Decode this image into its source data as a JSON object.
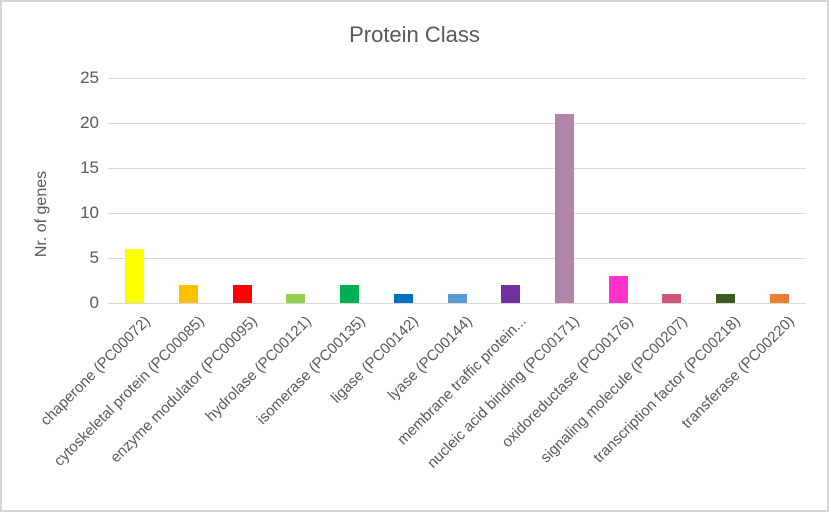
{
  "chart_data": {
    "type": "bar",
    "title": "Protein Class",
    "xlabel": "",
    "ylabel": "Nr. of genes",
    "ylim": [
      0,
      25
    ],
    "yticks": [
      0,
      5,
      10,
      15,
      20,
      25
    ],
    "grid": true,
    "legend": false,
    "categories": [
      "chaperone (PC00072)",
      "cytoskeletal protein (PC00085)",
      "enzyme modulator (PC00095)",
      "hydrolase (PC00121)",
      "isomerase (PC00135)",
      "ligase (PC00142)",
      "lyase (PC00144)",
      "membrane traffic protein...",
      "nucleic acid binding (PC00171)",
      "oxidoreductase (PC00176)",
      "signaling molecule (PC00207)",
      "transcription factor (PC00218)",
      "transferase (PC00220)"
    ],
    "values": [
      6,
      2,
      2,
      1,
      2,
      1,
      1,
      2,
      21,
      3,
      1,
      1,
      1
    ],
    "bar_colors": [
      "#FFFF00",
      "#FFC000",
      "#FF0000",
      "#92D050",
      "#00B050",
      "#0070C0",
      "#5B9BD5",
      "#7030A0",
      "#B284A7",
      "#FF33CC",
      "#CF5579",
      "#3A5B22",
      "#ED7D31"
    ]
  },
  "style": {
    "text_color": "#595959",
    "gridline_color": "#D9D9D9",
    "axis_line_color": "#D9D9D9",
    "background": "#FFFFFF",
    "border_color": "#D6D6D6"
  }
}
